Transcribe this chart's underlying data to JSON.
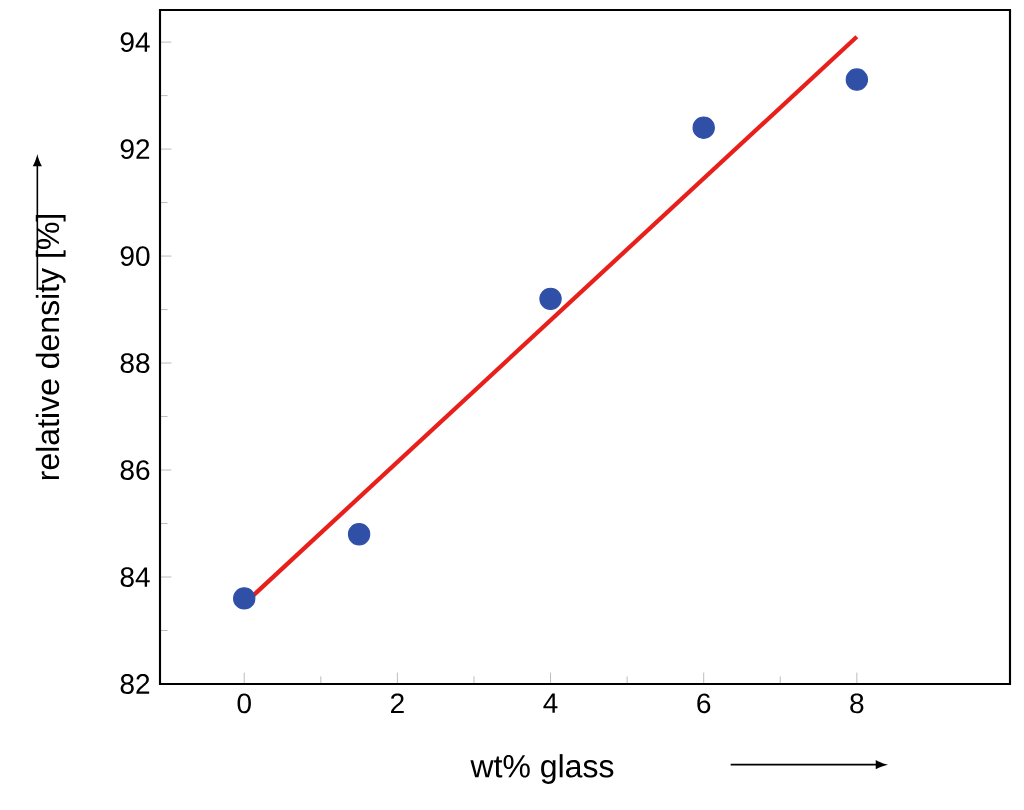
{
  "chart_data": {
    "type": "scatter",
    "xlabel": "wt% glass",
    "ylabel": "relative density [%]",
    "xlim": [
      -1.1,
      10
    ],
    "ylim": [
      82,
      94.6
    ],
    "xticks": [
      0,
      2,
      4,
      6,
      8
    ],
    "yticks": [
      82,
      84,
      86,
      88,
      90,
      92,
      94
    ],
    "grid": false,
    "series": [
      {
        "color": "#3050a8",
        "marker": "circle",
        "x": [
          0,
          1.5,
          4,
          6,
          8
        ],
        "values": [
          83.6,
          84.8,
          89.2,
          92.4,
          93.3
        ]
      },
      {
        "type": "line",
        "color": "#e8201c",
        "line_style": "solid",
        "marker": "none",
        "x": [
          0,
          8
        ],
        "values": [
          83.5,
          94.1
        ]
      }
    ]
  }
}
